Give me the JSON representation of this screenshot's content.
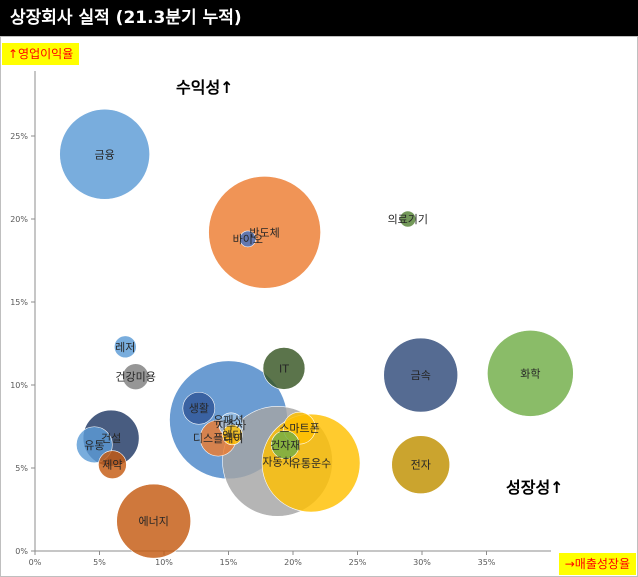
{
  "title": "상장회사 실적 (21.3분기 누적)",
  "y_axis_label": "↑영업이익율",
  "x_axis_label": "→매출성장율",
  "annotations": {
    "profitability": "수익성↑",
    "growth": "성장성↑"
  },
  "chart_data": {
    "type": "scatter",
    "title": "상장회사 실적 (21.3분기 누적)",
    "xlabel": "→매출성장율",
    "ylabel": "↑영업이익율",
    "xlim": [
      0,
      40
    ],
    "ylim": [
      0,
      27
    ],
    "x_ticks": [
      "0%",
      "5%",
      "10%",
      "15%",
      "20%",
      "25%",
      "30%",
      "35%"
    ],
    "y_ticks": [
      "0%",
      "5%",
      "10%",
      "15%",
      "20%",
      "25%"
    ],
    "grid": false,
    "points": [
      {
        "label": "금융",
        "x": 5.4,
        "y": 23.9,
        "size": 45,
        "color": "#5b9bd5"
      },
      {
        "label": "반도체",
        "x": 17.8,
        "y": 19.2,
        "size": 56,
        "color": "#ed7d31"
      },
      {
        "label": "바이오",
        "x": 16.5,
        "y": 18.8,
        "size": 8,
        "color": "#4472c4"
      },
      {
        "label": "의료기기",
        "x": 28.9,
        "y": 20.0,
        "size": 8,
        "color": "#548235"
      },
      {
        "label": "레저",
        "x": 7.0,
        "y": 12.3,
        "size": 11,
        "color": "#5b9bd5"
      },
      {
        "label": "건강미용",
        "x": 7.8,
        "y": 10.5,
        "size": 13,
        "color": "#7f7f7f"
      },
      {
        "label": "IT",
        "x": 19.3,
        "y": 11.0,
        "size": 21,
        "color": "#375623"
      },
      {
        "label": "금속",
        "x": 29.9,
        "y": 10.6,
        "size": 37,
        "color": "#2f4a7a"
      },
      {
        "label": "화학",
        "x": 38.4,
        "y": 10.7,
        "size": 43,
        "color": "#70ad47"
      },
      {
        "label": "생활",
        "x": 12.7,
        "y": 8.6,
        "size": 16,
        "color": "#2f5597"
      },
      {
        "label": "유패션",
        "x": 15.0,
        "y": 7.9,
        "size": 59,
        "color": "#4a86c8"
      },
      {
        "label": "지주사",
        "x": 15.2,
        "y": 7.6,
        "size": 12,
        "color": "#9dc3e6"
      },
      {
        "label": "엔터",
        "x": 15.3,
        "y": 7.0,
        "size": 10,
        "color": "#ffc000"
      },
      {
        "label": "디스플레이",
        "x": 14.2,
        "y": 6.8,
        "size": 18,
        "color": "#ed7d31"
      },
      {
        "label": "건설",
        "x": 5.9,
        "y": 6.8,
        "size": 28,
        "color": "#203864"
      },
      {
        "label": "유통",
        "x": 4.6,
        "y": 6.4,
        "size": 18,
        "color": "#5b9bd5"
      },
      {
        "label": "제약",
        "x": 6.0,
        "y": 5.2,
        "size": 14,
        "color": "#c55a11"
      },
      {
        "label": "스마트폰",
        "x": 20.5,
        "y": 7.4,
        "size": 16,
        "color": "#ffc000"
      },
      {
        "label": "건자재",
        "x": 19.4,
        "y": 6.4,
        "size": 14,
        "color": "#70ad47"
      },
      {
        "label": "자동차",
        "x": 18.8,
        "y": 5.4,
        "size": 55,
        "color": "#a5a5a5"
      },
      {
        "label": "유통운수",
        "x": 21.4,
        "y": 5.3,
        "size": 49,
        "color": "#ffc000"
      },
      {
        "label": "전자",
        "x": 29.9,
        "y": 5.2,
        "size": 29,
        "color": "#bf9000"
      },
      {
        "label": "에너지",
        "x": 9.2,
        "y": 1.8,
        "size": 37,
        "color": "#c55a11"
      }
    ]
  }
}
